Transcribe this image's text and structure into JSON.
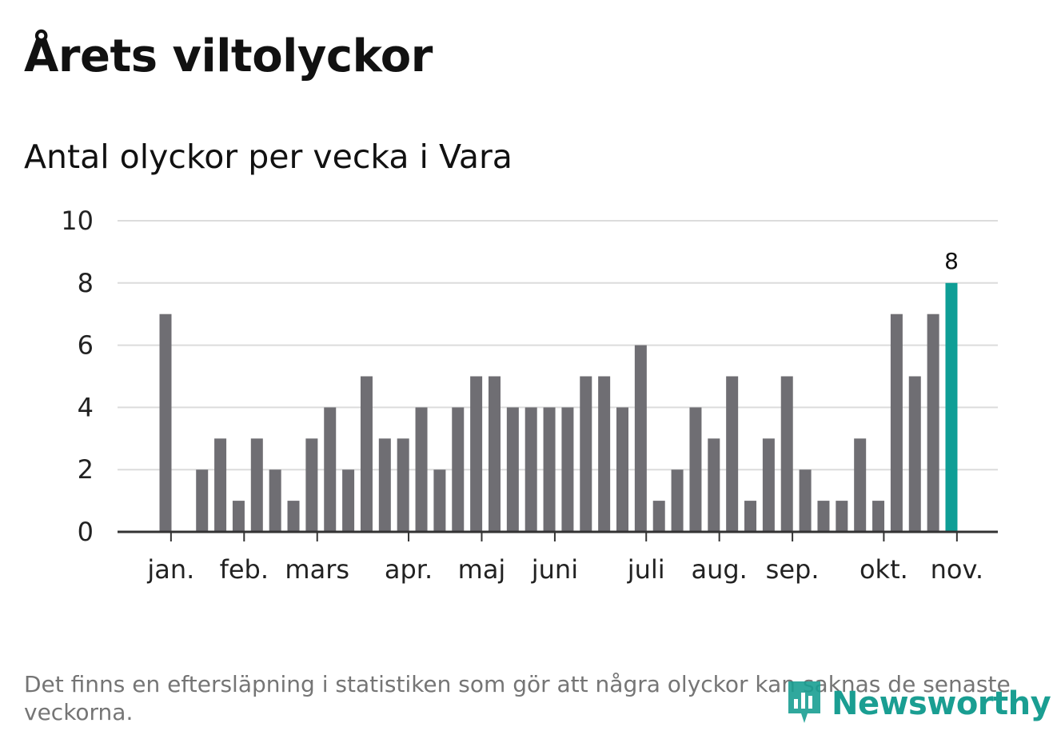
{
  "title": "Årets viltolyckor",
  "subtitle": "Antal olyckor per vecka i Vara",
  "footnote": "Det finns en eftersläpning i statistiken som gör att några olyckor kan saknas de senaste veckorna.",
  "logo": {
    "text": "Newsworthy",
    "icon": "newsworthy-logo-icon"
  },
  "colors": {
    "bar": "#6f6e73",
    "highlight": "#0e9e96",
    "grid": "#dcdcdc",
    "axis": "#333333",
    "logo": "#1a9e92"
  },
  "chart_data": {
    "type": "bar",
    "title": "Årets viltolyckor",
    "subtitle": "Antal olyckor per vecka i Vara",
    "xlabel": "",
    "ylabel": "",
    "ylim": [
      0,
      10
    ],
    "yticks": [
      0,
      2,
      4,
      6,
      8,
      10
    ],
    "grid": true,
    "values": [
      7,
      0,
      2,
      3,
      1,
      3,
      2,
      1,
      3,
      4,
      2,
      5,
      3,
      3,
      4,
      2,
      4,
      5,
      5,
      4,
      4,
      4,
      4,
      5,
      5,
      4,
      6,
      1,
      2,
      4,
      3,
      5,
      1,
      3,
      5,
      2,
      1,
      1,
      3,
      1,
      7,
      5,
      7,
      8
    ],
    "highlight_index": 43,
    "data_labels": [
      {
        "index": 43,
        "text": "8"
      }
    ],
    "month_labels": [
      {
        "label": "jan.",
        "week": 0.3
      },
      {
        "label": "feb.",
        "week": 4.3
      },
      {
        "label": "mars",
        "week": 8.3
      },
      {
        "label": "apr.",
        "week": 13.3
      },
      {
        "label": "maj",
        "week": 17.3
      },
      {
        "label": "juni",
        "week": 21.3
      },
      {
        "label": "juli",
        "week": 26.3
      },
      {
        "label": "aug.",
        "week": 30.3
      },
      {
        "label": "sep.",
        "week": 34.3
      },
      {
        "label": "okt.",
        "week": 39.3
      },
      {
        "label": "nov.",
        "week": 43.3
      }
    ]
  }
}
